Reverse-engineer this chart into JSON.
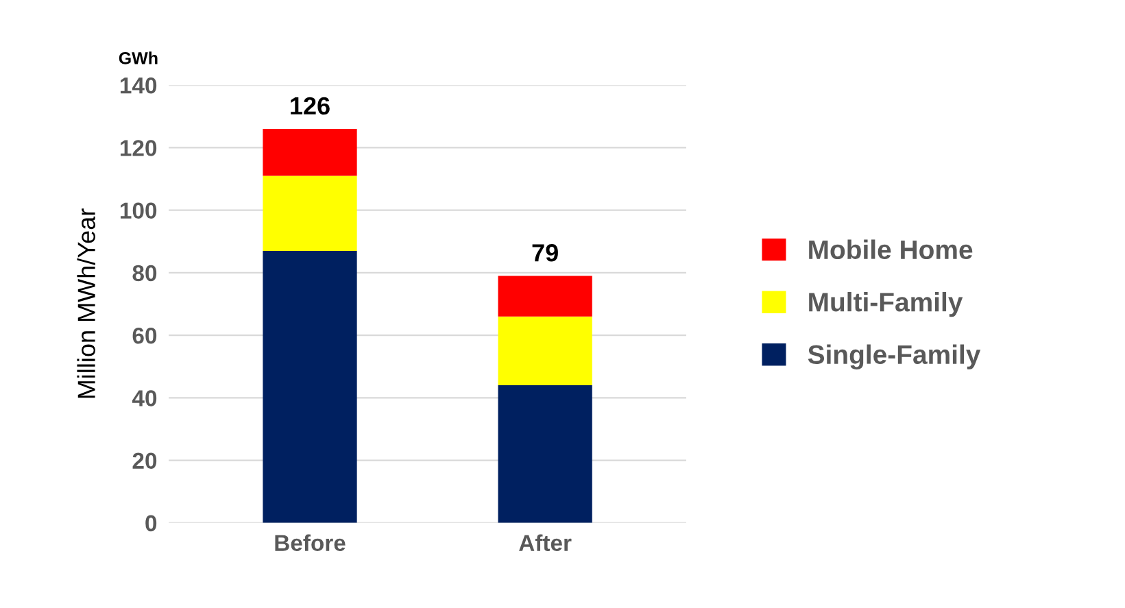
{
  "chart_data": {
    "type": "bar",
    "stacked": true,
    "categories": [
      "Before",
      "After"
    ],
    "series": [
      {
        "name": "Single-Family",
        "color": "#002060",
        "values": [
          87,
          44
        ]
      },
      {
        "name": "Multi-Family",
        "color": "#ffff00",
        "values": [
          24,
          22
        ]
      },
      {
        "name": "Mobile Home",
        "color": "#ff0000",
        "values": [
          15,
          13
        ]
      }
    ],
    "totals": [
      "126",
      "79"
    ],
    "ylabel": "Million MWh/Year",
    "annotations": [
      "GWh"
    ],
    "ylim": [
      0,
      140
    ],
    "yticks": [
      0,
      20,
      40,
      60,
      80,
      100,
      120,
      140
    ],
    "grid": "y",
    "legend": "right"
  }
}
